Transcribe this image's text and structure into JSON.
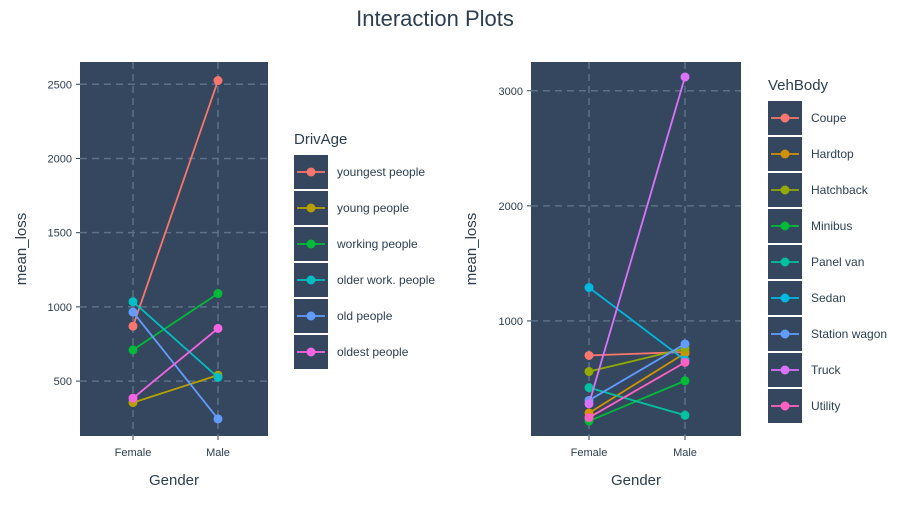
{
  "title": "Interaction Plots",
  "colors": {
    "panel": "#34475e",
    "grid": "#5d7088",
    "text": "#2c3e50"
  },
  "chart_data": [
    {
      "type": "line",
      "xlabel": "Gender",
      "ylabel": "mean_loss",
      "categories": [
        "Female",
        "Male"
      ],
      "yticks": [
        500,
        1000,
        1500,
        2000,
        2500
      ],
      "ylim": [
        130,
        2650
      ],
      "grid": true,
      "legend": {
        "title": "DrivAge",
        "placement": "right"
      },
      "series": [
        {
          "name": "youngest people",
          "color": "#f8766d",
          "values": [
            870,
            2525
          ]
        },
        {
          "name": "young people",
          "color": "#b79f00",
          "values": [
            355,
            540
          ]
        },
        {
          "name": "working people",
          "color": "#00ba38",
          "values": [
            710,
            1090
          ]
        },
        {
          "name": "older work. people",
          "color": "#00bfc4",
          "values": [
            1035,
            525
          ]
        },
        {
          "name": "old people",
          "color": "#619cff",
          "values": [
            965,
            245
          ]
        },
        {
          "name": "oldest people",
          "color": "#f564e3",
          "values": [
            385,
            855
          ]
        }
      ]
    },
    {
      "type": "line",
      "xlabel": "Gender",
      "ylabel": "mean_loss",
      "categories": [
        "Female",
        "Male"
      ],
      "yticks": [
        1000,
        2000,
        3000
      ],
      "ylim": [
        0,
        3250
      ],
      "grid": true,
      "legend": {
        "title": "VehBody",
        "placement": "right"
      },
      "series": [
        {
          "name": "Coupe",
          "color": "#f8766d",
          "values": [
            700,
            730
          ]
        },
        {
          "name": "Hardtop",
          "color": "#d39200",
          "values": [
            200,
            720
          ]
        },
        {
          "name": "Hatchback",
          "color": "#93aa00",
          "values": [
            560,
            760
          ]
        },
        {
          "name": "Minibus",
          "color": "#00ba38",
          "values": [
            130,
            480
          ]
        },
        {
          "name": "Panel van",
          "color": "#00c19f",
          "values": [
            420,
            180
          ]
        },
        {
          "name": "Sedan",
          "color": "#00b9e3",
          "values": [
            1290,
            660
          ]
        },
        {
          "name": "Station wagon",
          "color": "#619cff",
          "values": [
            310,
            800
          ]
        },
        {
          "name": "Truck",
          "color": "#db72fb",
          "values": [
            280,
            3120
          ]
        },
        {
          "name": "Utility",
          "color": "#ff61c3",
          "values": [
            160,
            640
          ]
        }
      ]
    }
  ]
}
